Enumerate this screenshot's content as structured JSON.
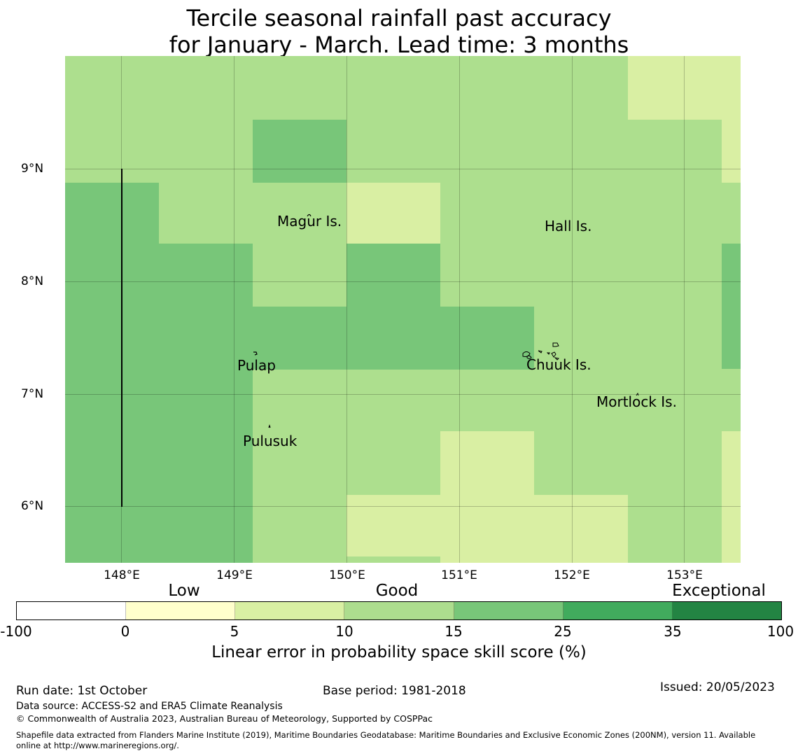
{
  "title": {
    "line1": "Tercile seasonal rainfall past accuracy",
    "line2": "for January - March. Lead time: 3 months"
  },
  "map": {
    "x_ticks": [
      "148°E",
      "149°E",
      "150°E",
      "151°E",
      "152°E",
      "153°E"
    ],
    "y_ticks": [
      "9°N",
      "8°N",
      "7°N",
      "6°N"
    ],
    "lon_range": [
      147.5,
      153.5
    ],
    "lat_range": [
      5.5,
      10.0
    ],
    "places": [
      {
        "name": "Magur Is.",
        "lon": 149.7,
        "lat": 8.5
      },
      {
        "name": "Hall Is.",
        "lon": 151.8,
        "lat": 8.5
      },
      {
        "name": "Pulap",
        "lon": 149.2,
        "lat": 7.3
      },
      {
        "name": "Chuuk Is.",
        "lon": 151.85,
        "lat": 7.3
      },
      {
        "name": "Mortlock Is.",
        "lon": 152.6,
        "lat": 6.95
      },
      {
        "name": "Pulusuk",
        "lon": 149.3,
        "lat": 6.6
      }
    ],
    "skill_classes": {
      "c5_10": "#d9efa3",
      "c10_15": "#addf8e",
      "c15_25": "#78c679",
      "c25_35": "#41ab5d"
    }
  },
  "colorbar": {
    "category_labels": [
      "Low",
      "Good",
      "Exceptional"
    ],
    "tick_labels": [
      "-100",
      "0",
      "5",
      "10",
      "15",
      "25",
      "35",
      "100"
    ],
    "segment_colors": [
      "#ffffff",
      "#ffffcc",
      "#d9f0a3",
      "#addd8e",
      "#78c679",
      "#41ab5d",
      "#238443"
    ],
    "label": "Linear error in probability space skill score (%)"
  },
  "footer": {
    "run_date": "Run date: 1st October",
    "base_period": "Base period: 1981-2018",
    "issued": "Issued: 20/05/2023",
    "data_source": "Data source: ACCESS-S2 and ERA5 Climate Reanalysis",
    "copyright": "© Commonwealth of Australia 2023, Australian Bureau of Meteorology, Supported by COSPPac",
    "shapefile_line1": "Shapefile data extracted from Flanders Marine Institute (2019), Maritime Boundaries Geodatabase: Maritime Boundaries and Exclusive Economic Zones (200NM), version 11. Available",
    "shapefile_line2": "online at http://www.marineregions.org/."
  }
}
